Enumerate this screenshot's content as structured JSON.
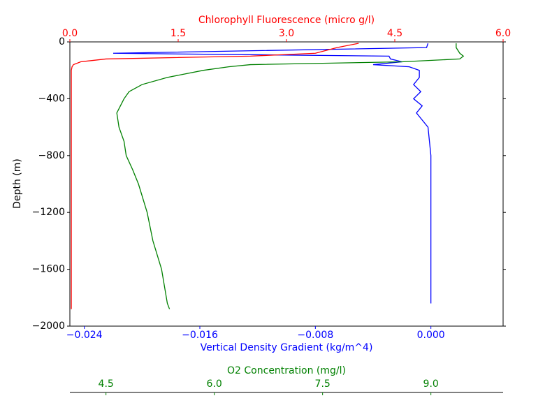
{
  "chart_data": {
    "type": "line",
    "ylabel": "Depth (m)",
    "ylim": [
      -2000,
      0
    ],
    "yticks": [
      0,
      {
        "value": -400,
        "label": "−400"
      },
      {
        "value": -800,
        "label": "−800"
      },
      {
        "value": -1200,
        "label": "−1200"
      },
      {
        "value": -1600,
        "label": "−1600"
      },
      {
        "value": -2000,
        "label": "−2000"
      }
    ],
    "xlabel": "Vertical Density Gradient (kg/m^4)",
    "xlim": [
      -0.025,
      0.005
    ],
    "xticks": [
      {
        "value": -0.024,
        "label": "−0.024"
      },
      {
        "value": -0.016,
        "label": "−0.016"
      },
      {
        "value": -0.008,
        "label": "−0.008"
      },
      {
        "value": 0,
        "label": "0.000"
      }
    ],
    "x2label": "Chlorophyll Fluorescence (micro g/l)",
    "x2lim": [
      0,
      6
    ],
    "x2ticks": [
      {
        "value": 0,
        "label": "0.0"
      },
      1.5,
      {
        "value": 3,
        "label": "3.0"
      },
      4.5,
      {
        "value": 6,
        "label": "6.0"
      }
    ],
    "x3label": "O2 Concentration (mg/l)",
    "x3lim": [
      4,
      10
    ],
    "x3ticks": [
      4.5,
      {
        "value": 6,
        "label": "6.0"
      },
      7.5,
      {
        "value": 9,
        "label": "9.0"
      }
    ],
    "y": [
      -10,
      -40,
      -80,
      -100,
      -120,
      -140,
      -160,
      -175,
      -200,
      -250,
      -300,
      -350,
      -400,
      -450,
      -500,
      -600,
      -700,
      -800,
      -900,
      -1000,
      -1200,
      -1400,
      -1600,
      -1840,
      -1880
    ],
    "series": [
      {
        "axis": "x",
        "color": "#0000ff",
        "values": [
          -0.0002,
          -0.0003,
          -0.022,
          -0.0029,
          -0.0028,
          -0.002,
          -0.004,
          -0.0015,
          -0.0008,
          -0.0008,
          -0.0012,
          -0.0007,
          -0.0012,
          -0.0006,
          -0.001,
          -0.0002,
          -0.0001,
          0,
          0,
          0,
          0,
          0,
          0,
          0,
          null
        ]
      },
      {
        "axis": "x2",
        "color": "#ff0000",
        "values": [
          4.0,
          3.7,
          3.4,
          2.5,
          0.5,
          0.15,
          0.05,
          0.03,
          0.02,
          0.02,
          0.02,
          0.02,
          0.02,
          0.02,
          0.02,
          0.02,
          0.02,
          0.02,
          0.02,
          0.02,
          0.02,
          0.02,
          0.02,
          0.02,
          0.02
        ]
      },
      {
        "axis": "x3",
        "color": "#008000",
        "values": [
          9.35,
          9.35,
          9.4,
          9.45,
          9.4,
          8.6,
          6.5,
          6.2,
          5.85,
          5.35,
          5.0,
          4.82,
          4.75,
          4.7,
          4.65,
          4.68,
          4.75,
          4.78,
          4.87,
          4.95,
          5.07,
          5.15,
          5.27,
          5.35,
          5.38
        ]
      }
    ]
  }
}
